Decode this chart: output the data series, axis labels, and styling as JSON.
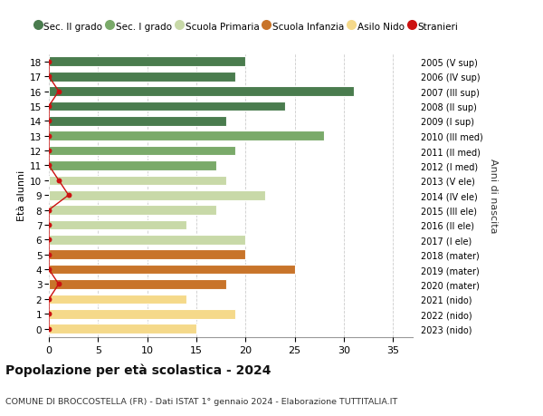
{
  "ages": [
    18,
    17,
    16,
    15,
    14,
    13,
    12,
    11,
    10,
    9,
    8,
    7,
    6,
    5,
    4,
    3,
    2,
    1,
    0
  ],
  "values": [
    20,
    19,
    31,
    24,
    18,
    28,
    19,
    17,
    18,
    22,
    17,
    14,
    20,
    20,
    25,
    18,
    14,
    19,
    15
  ],
  "right_labels": [
    "2005 (V sup)",
    "2006 (IV sup)",
    "2007 (III sup)",
    "2008 (II sup)",
    "2009 (I sup)",
    "2010 (III med)",
    "2011 (II med)",
    "2012 (I med)",
    "2013 (V ele)",
    "2014 (IV ele)",
    "2015 (III ele)",
    "2016 (II ele)",
    "2017 (I ele)",
    "2018 (mater)",
    "2019 (mater)",
    "2020 (mater)",
    "2021 (nido)",
    "2022 (nido)",
    "2023 (nido)"
  ],
  "bar_colors": [
    "#4a7c4e",
    "#4a7c4e",
    "#4a7c4e",
    "#4a7c4e",
    "#4a7c4e",
    "#7aaa6a",
    "#7aaa6a",
    "#7aaa6a",
    "#c8d9a8",
    "#c8d9a8",
    "#c8d9a8",
    "#c8d9a8",
    "#c8d9a8",
    "#c8742a",
    "#c8742a",
    "#c8742a",
    "#f5d98a",
    "#f5d98a",
    "#f5d98a"
  ],
  "legend_labels": [
    "Sec. II grado",
    "Sec. I grado",
    "Scuola Primaria",
    "Scuola Infanzia",
    "Asilo Nido",
    "Stranieri"
  ],
  "legend_colors": [
    "#4a7c4e",
    "#7aaa6a",
    "#c8d9a8",
    "#c8742a",
    "#f5d98a",
    "#cc1111"
  ],
  "title": "Popolazione per età scolastica - 2024",
  "subtitle": "COMUNE DI BROCCOSTELLA (FR) - Dati ISTAT 1° gennaio 2024 - Elaborazione TUTTITALIA.IT",
  "right_axis_label": "Anni di nascita",
  "ylabel": "Età alunni",
  "xlim": [
    0,
    37
  ],
  "xticks": [
    0,
    5,
    10,
    15,
    20,
    25,
    30,
    35
  ],
  "background_color": "#ffffff",
  "grid_color": "#cccccc",
  "stranieri_values": [
    0,
    0,
    1,
    0,
    0,
    0,
    0,
    0,
    1,
    2,
    0,
    0,
    0,
    0,
    0,
    1,
    0,
    0,
    0
  ]
}
